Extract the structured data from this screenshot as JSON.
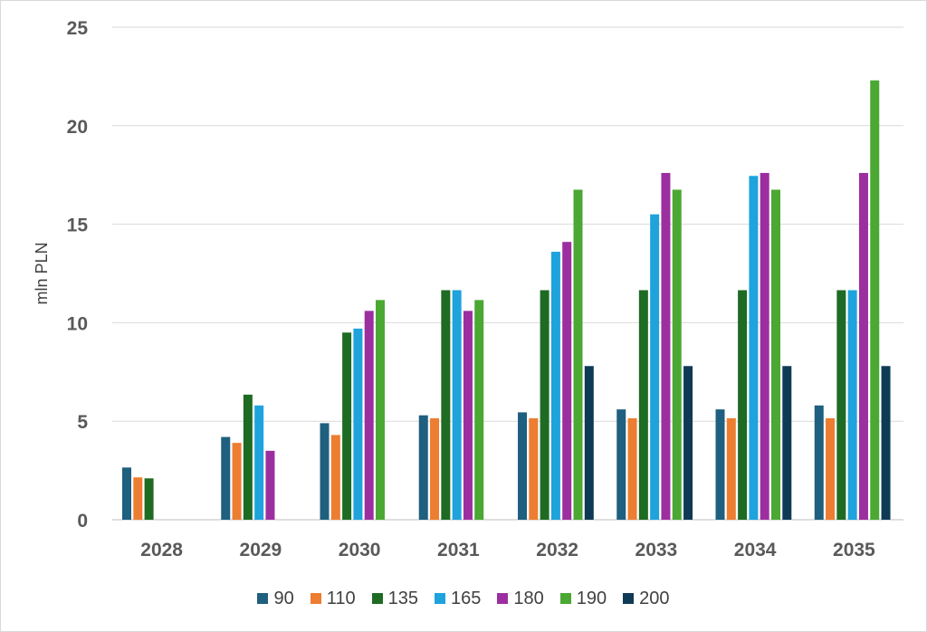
{
  "chart_data": {
    "type": "bar",
    "categories": [
      "2028",
      "2029",
      "2030",
      "2031",
      "2032",
      "2033",
      "2034",
      "2035"
    ],
    "ylabel": "mln PLN",
    "ylim": [
      0,
      25
    ],
    "yticks": [
      "0",
      "5",
      "10",
      "15",
      "20",
      "25"
    ],
    "grid": true,
    "legend_position": "bottom",
    "series": [
      {
        "name": "90",
        "color": "#1f5f7f",
        "values": [
          2.65,
          4.2,
          4.9,
          5.3,
          5.45,
          5.6,
          5.6,
          5.8
        ]
      },
      {
        "name": "110",
        "color": "#ed7d31",
        "values": [
          2.15,
          3.9,
          4.3,
          5.15,
          5.15,
          5.15,
          5.15,
          5.15
        ]
      },
      {
        "name": "135",
        "color": "#1e6b24",
        "values": [
          2.1,
          6.35,
          9.5,
          11.65,
          11.65,
          11.65,
          11.65,
          11.65
        ]
      },
      {
        "name": "165",
        "color": "#1ea3dc",
        "values": [
          null,
          5.8,
          9.7,
          11.65,
          13.6,
          15.5,
          17.45,
          11.65
        ]
      },
      {
        "name": "180",
        "color": "#9c2fa0",
        "values": [
          null,
          3.5,
          10.6,
          10.6,
          14.1,
          17.6,
          17.6,
          17.6
        ]
      },
      {
        "name": "190",
        "color": "#4aa833",
        "values": [
          null,
          null,
          11.15,
          11.15,
          16.75,
          16.75,
          16.75,
          22.3
        ]
      },
      {
        "name": "200",
        "color": "#0f3a55",
        "values": [
          null,
          null,
          null,
          null,
          7.8,
          7.8,
          7.8,
          7.8
        ]
      }
    ]
  }
}
